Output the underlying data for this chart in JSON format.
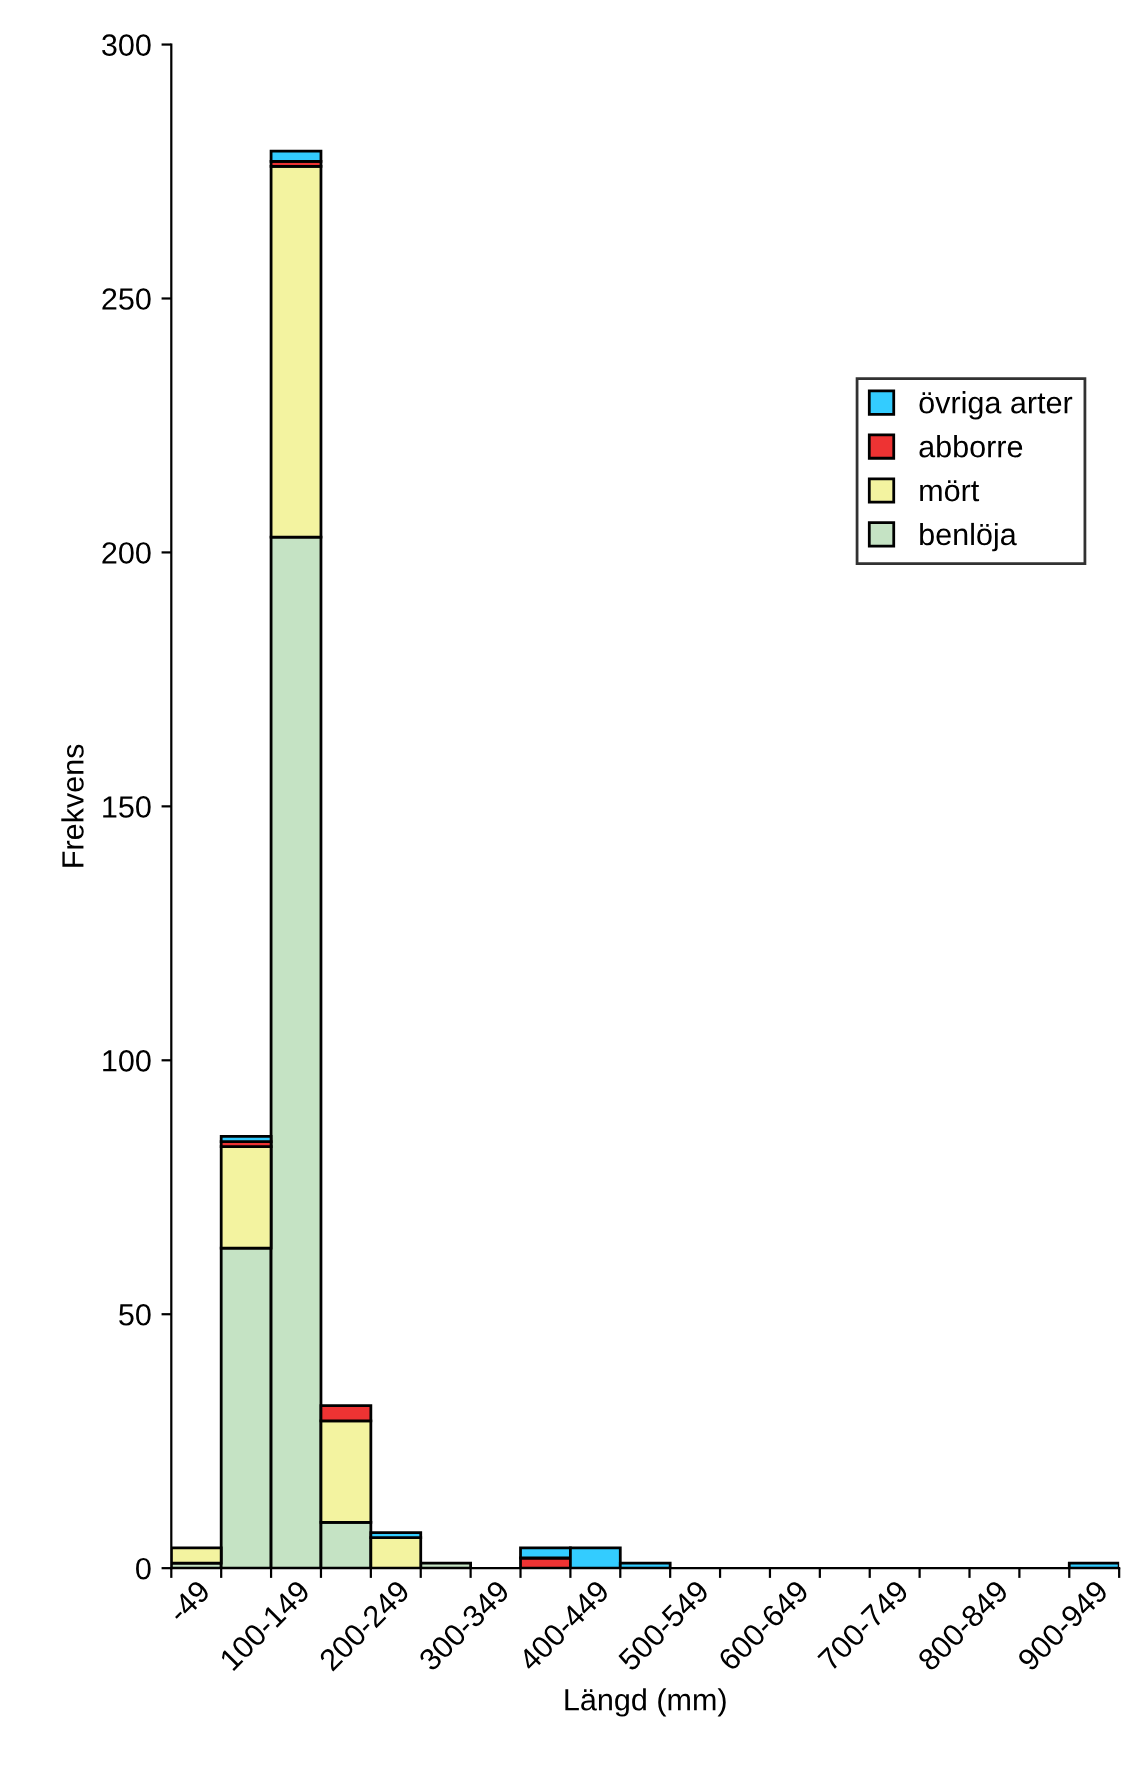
{
  "chart_data": {
    "type": "bar",
    "stacked": true,
    "xlabel": "Längd (mm)",
    "ylabel": "Frekvens",
    "categories": [
      "-49",
      null,
      "100-149",
      null,
      "200-249",
      null,
      "300-349",
      null,
      "400-449",
      null,
      "500-549",
      null,
      "600-649",
      null,
      "700-749",
      null,
      "800-849",
      null,
      "900-949"
    ],
    "series": [
      {
        "name": "benlöja",
        "color": "#c5e3c4",
        "values": [
          1,
          63,
          203,
          9,
          0,
          1,
          0,
          0,
          0,
          0,
          0,
          0,
          0,
          0,
          0,
          0,
          0,
          0,
          0
        ]
      },
      {
        "name": "mört",
        "color": "#f3f3a0",
        "values": [
          3,
          20,
          73,
          20,
          6,
          0,
          0,
          0,
          0,
          0,
          0,
          0,
          0,
          0,
          0,
          0,
          0,
          0,
          0
        ]
      },
      {
        "name": "abborre",
        "color": "#ee3333",
        "values": [
          0,
          1,
          1,
          3,
          0,
          0,
          0,
          2,
          0,
          0,
          0,
          0,
          0,
          0,
          0,
          0,
          0,
          0,
          0
        ]
      },
      {
        "name": "övriga arter",
        "color": "#33ccff",
        "values": [
          0,
          1,
          2,
          0,
          1,
          0,
          0,
          2,
          4,
          1,
          0,
          0,
          0,
          0,
          0,
          0,
          0,
          0,
          1
        ]
      }
    ],
    "ylim": [
      0,
      300
    ],
    "yticks": [
      0,
      50,
      100,
      150,
      200,
      250,
      300
    ],
    "grid": false,
    "legend": "right"
  }
}
